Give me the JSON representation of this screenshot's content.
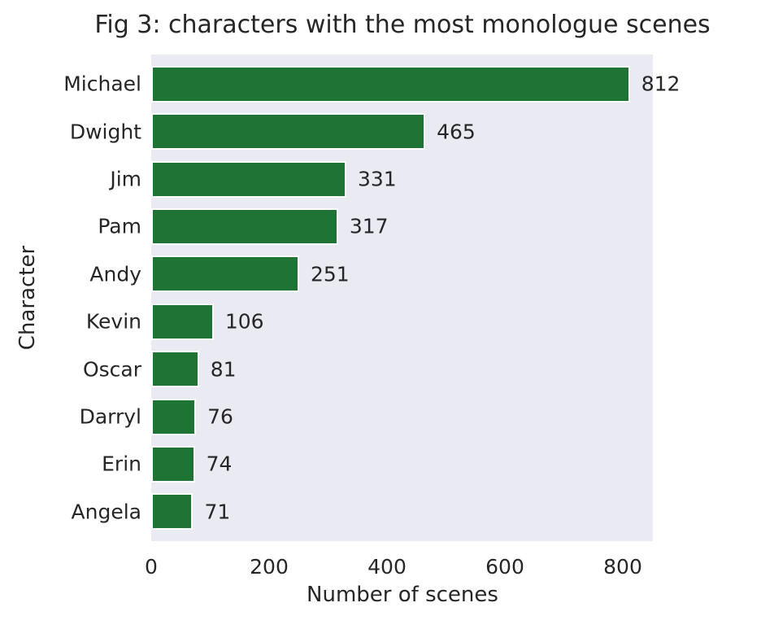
{
  "chart_data": {
    "type": "bar",
    "orientation": "horizontal",
    "title": "Fig 3: characters with the most monologue scenes",
    "xlabel": "Number of scenes",
    "ylabel": "Character",
    "categories": [
      "Michael",
      "Dwight",
      "Jim",
      "Pam",
      "Andy",
      "Kevin",
      "Oscar",
      "Darryl",
      "Erin",
      "Angela"
    ],
    "values": [
      812,
      465,
      331,
      317,
      251,
      106,
      81,
      76,
      74,
      71
    ],
    "x_ticks": [
      0,
      200,
      400,
      600,
      800
    ],
    "xlim": [
      0,
      851
    ],
    "grid": false,
    "legend_position": "none",
    "bar_value_labels_shown": true,
    "colors": {
      "bar_fill": "#1f7334",
      "bar_edge": "#ffffff",
      "plot_background": "#eaeaf2",
      "figure_background": "#ffffff",
      "text": "#262626"
    }
  }
}
